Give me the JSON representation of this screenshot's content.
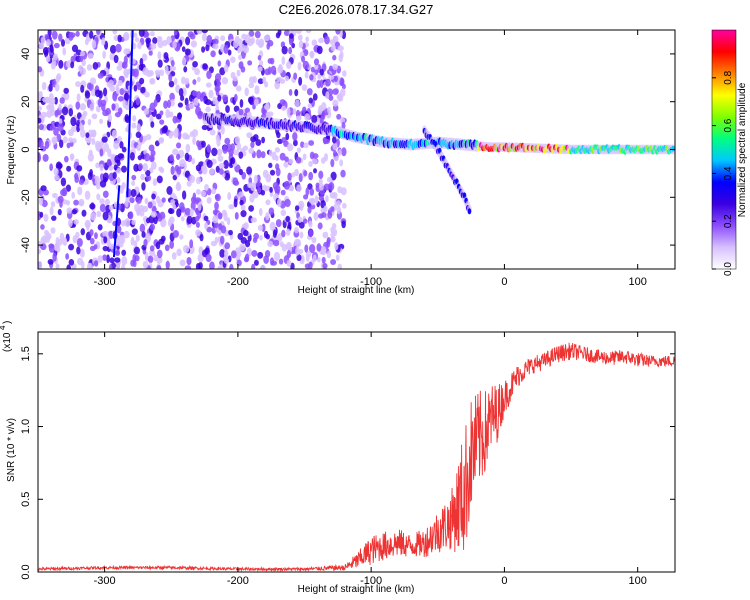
{
  "chart_data": [
    {
      "type": "heatmap",
      "title": "C2E6.2026.078.17.34.G27",
      "xlabel": "Height of straight line (km)",
      "ylabel": "Frequency (Hz)",
      "xlim": [
        -350,
        128
      ],
      "ylim": [
        -50,
        50
      ],
      "xticks": [
        -300,
        -200,
        -100,
        0,
        100
      ],
      "yticks": [
        -40,
        -20,
        0,
        20,
        40
      ],
      "colorbar": {
        "label": "Normalized spectral amplitude",
        "range": [
          0,
          1
        ],
        "ticks": [
          "0.0",
          "0.2",
          "0.4",
          "0.6",
          "0.8"
        ],
        "colors": [
          "#ffffff",
          "#d7c0ff",
          "#8c4dff",
          "#3a00e0",
          "#0000ff",
          "#00c8ff",
          "#00ff80",
          "#80ff00",
          "#ffff00",
          "#ff8000",
          "#ff0000",
          "#ff00a0"
        ]
      },
      "features": [
        {
          "name": "noise-region",
          "x_range": [
            -350,
            -130
          ],
          "y_range": [
            -50,
            50
          ],
          "amplitude": 0.15
        },
        {
          "name": "signal-trace",
          "points": [
            [
              -225,
              13
            ],
            [
              -200,
              12
            ],
            [
              -160,
              10
            ],
            [
              -130,
              8
            ],
            [
              -110,
              5
            ],
            [
              -90,
              3
            ],
            [
              -70,
              2
            ],
            [
              -50,
              3
            ],
            [
              -30,
              2
            ],
            [
              -10,
              1
            ],
            [
              0,
              1
            ],
            [
              50,
              0
            ],
            [
              128,
              0
            ]
          ]
        },
        {
          "name": "reflection-branch",
          "points": [
            [
              -60,
              8
            ],
            [
              -50,
              0
            ],
            [
              -40,
              -10
            ],
            [
              -30,
              -20
            ],
            [
              -25,
              -27
            ]
          ]
        }
      ]
    },
    {
      "type": "line",
      "title": "",
      "xlabel": "Height of straight line (km)",
      "ylabel": "SNR (10 * v/v)",
      "y_scale_label": "(x10",
      "y_scale_exp": "4",
      "xlim": [
        -350,
        128
      ],
      "ylim": [
        0,
        1.65
      ],
      "xticks": [
        -300,
        -200,
        -100,
        0,
        100
      ],
      "yticks": [
        "0.0",
        "0.5",
        "1.0",
        "1.5"
      ],
      "series": [
        {
          "name": "SNR",
          "color": "#ee3333",
          "x": [
            -350,
            -300,
            -250,
            -200,
            -150,
            -120,
            -110,
            -100,
            -90,
            -80,
            -70,
            -60,
            -50,
            -40,
            -30,
            -25,
            -20,
            -15,
            -10,
            -5,
            0,
            10,
            20,
            30,
            40,
            50,
            60,
            70,
            80,
            90,
            100,
            110,
            128
          ],
          "y": [
            0.02,
            0.03,
            0.03,
            0.02,
            0.02,
            0.03,
            0.08,
            0.15,
            0.18,
            0.2,
            0.18,
            0.2,
            0.28,
            0.35,
            0.55,
            0.8,
            0.9,
            0.95,
            1.05,
            1.1,
            1.2,
            1.35,
            1.42,
            1.45,
            1.5,
            1.52,
            1.5,
            1.48,
            1.47,
            1.48,
            1.46,
            1.45,
            1.45
          ],
          "noise": [
            0.01,
            0.01,
            0.01,
            0.01,
            0.01,
            0.02,
            0.06,
            0.1,
            0.1,
            0.1,
            0.08,
            0.1,
            0.15,
            0.2,
            0.45,
            0.4,
            0.35,
            0.3,
            0.25,
            0.2,
            0.12,
            0.08,
            0.06,
            0.06,
            0.06,
            0.06,
            0.05,
            0.05,
            0.05,
            0.05,
            0.05,
            0.04,
            0.04
          ]
        }
      ]
    }
  ]
}
